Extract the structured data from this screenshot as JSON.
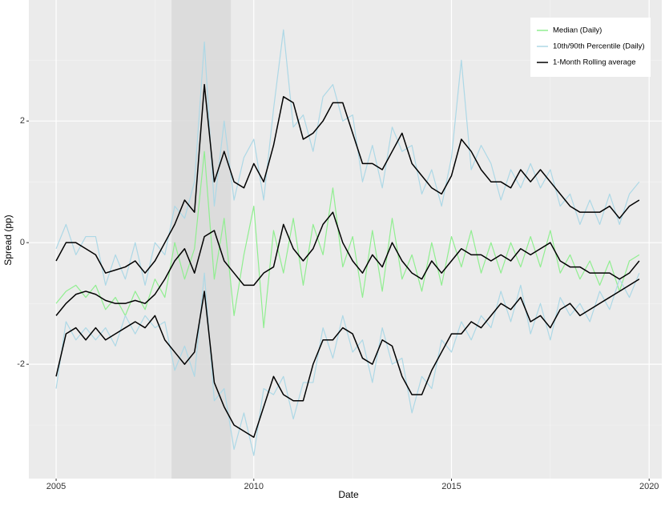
{
  "chart_data": {
    "type": "line",
    "x_label": "Date",
    "y_label": "Spread (pp)",
    "x": [
      2005,
      2005.25,
      2005.5,
      2005.75,
      2006,
      2006.25,
      2006.5,
      2006.75,
      2007,
      2007.25,
      2007.5,
      2007.75,
      2008,
      2008.25,
      2008.5,
      2008.75,
      2009,
      2009.25,
      2009.5,
      2009.75,
      2010,
      2010.25,
      2010.5,
      2010.75,
      2011,
      2011.25,
      2011.5,
      2011.75,
      2012,
      2012.25,
      2012.5,
      2012.75,
      2013,
      2013.25,
      2013.5,
      2013.75,
      2014,
      2014.25,
      2014.5,
      2014.75,
      2015,
      2015.25,
      2015.5,
      2015.75,
      2016,
      2016.25,
      2016.5,
      2016.75,
      2017,
      2017.25,
      2017.5,
      2017.75,
      2018,
      2018.25,
      2018.5,
      2018.75,
      2019,
      2019.25,
      2019.5,
      2019.75
    ],
    "series": [
      {
        "name": "Median (Daily)",
        "color": "#90ee90",
        "values": [
          -1.0,
          -0.8,
          -0.7,
          -0.9,
          -0.7,
          -1.1,
          -0.9,
          -1.2,
          -0.8,
          -1.1,
          -0.6,
          -0.9,
          0.0,
          -0.6,
          -0.1,
          1.5,
          -0.6,
          0.4,
          -1.2,
          -0.2,
          0.6,
          -1.4,
          0.2,
          -0.5,
          0.4,
          -0.7,
          0.3,
          -0.2,
          0.9,
          -0.4,
          0.1,
          -0.9,
          0.2,
          -0.8,
          0.4,
          -0.6,
          -0.2,
          -0.8,
          0.0,
          -0.7,
          0.1,
          -0.4,
          0.2,
          -0.5,
          0.0,
          -0.5,
          0.0,
          -0.4,
          0.1,
          -0.4,
          0.2,
          -0.5,
          -0.2,
          -0.6,
          -0.3,
          -0.7,
          -0.3,
          -0.8,
          -0.3,
          -0.2
        ]
      },
      {
        "name": "10th/90th Percentile (Daily)",
        "color": "#add8e6",
        "values": [
          -0.1,
          0.3,
          -0.2,
          0.1,
          0.1,
          -0.7,
          -0.2,
          -0.6,
          0.0,
          -0.7,
          0.0,
          -0.2,
          0.6,
          0.4,
          1.0,
          3.3,
          0.6,
          2.0,
          0.7,
          1.4,
          1.7,
          0.7,
          2.2,
          3.5,
          1.9,
          2.1,
          1.5,
          2.4,
          2.6,
          2.0,
          2.1,
          1.0,
          1.6,
          0.9,
          1.9,
          1.5,
          1.6,
          0.8,
          1.2,
          0.6,
          1.4,
          3.0,
          1.2,
          1.6,
          1.3,
          0.7,
          1.2,
          0.9,
          1.3,
          0.9,
          1.2,
          0.6,
          0.8,
          0.3,
          0.7,
          0.3,
          0.8,
          0.3,
          0.8,
          1.0
        ]
      },
      {
        "name": "10th/90th Percentile (Daily)",
        "color": "#add8e6",
        "values": [
          -2.4,
          -1.3,
          -1.6,
          -1.4,
          -1.6,
          -1.4,
          -1.7,
          -1.2,
          -1.5,
          -1.2,
          -1.4,
          -1.3,
          -2.1,
          -1.7,
          -2.2,
          -0.5,
          -2.6,
          -2.4,
          -3.4,
          -2.8,
          -3.5,
          -2.4,
          -2.5,
          -2.2,
          -2.9,
          -2.3,
          -2.3,
          -1.4,
          -1.9,
          -1.2,
          -1.8,
          -1.6,
          -2.3,
          -1.4,
          -2.0,
          -1.9,
          -2.8,
          -2.2,
          -2.4,
          -1.6,
          -1.8,
          -1.3,
          -1.6,
          -1.2,
          -1.4,
          -0.8,
          -1.3,
          -0.7,
          -1.5,
          -1.0,
          -1.6,
          -0.9,
          -1.2,
          -1.0,
          -1.3,
          -0.8,
          -1.1,
          -0.6,
          -0.9,
          -0.5
        ]
      },
      {
        "name": "1-Month Rolling average",
        "color": "#000000",
        "values": [
          -1.2,
          -1.0,
          -0.85,
          -0.8,
          -0.85,
          -0.95,
          -1.0,
          -1.0,
          -0.95,
          -1.0,
          -0.85,
          -0.6,
          -0.3,
          -0.1,
          -0.5,
          0.1,
          0.2,
          -0.3,
          -0.5,
          -0.7,
          -0.7,
          -0.5,
          -0.4,
          0.3,
          -0.1,
          -0.3,
          -0.1,
          0.3,
          0.5,
          0.0,
          -0.3,
          -0.5,
          -0.2,
          -0.4,
          0.0,
          -0.3,
          -0.5,
          -0.6,
          -0.3,
          -0.5,
          -0.3,
          -0.1,
          -0.2,
          -0.2,
          -0.3,
          -0.2,
          -0.3,
          -0.1,
          -0.2,
          -0.1,
          0.0,
          -0.3,
          -0.4,
          -0.4,
          -0.5,
          -0.5,
          -0.5,
          -0.6,
          -0.5,
          -0.3
        ]
      },
      {
        "name": "1-Month Rolling average",
        "color": "#000000",
        "values": [
          -0.3,
          0.0,
          0.0,
          -0.1,
          -0.2,
          -0.5,
          -0.45,
          -0.4,
          -0.3,
          -0.5,
          -0.3,
          0.0,
          0.3,
          0.7,
          0.5,
          2.6,
          1.0,
          1.5,
          1.0,
          0.9,
          1.3,
          1.0,
          1.6,
          2.4,
          2.3,
          1.7,
          1.8,
          2.0,
          2.3,
          2.3,
          1.8,
          1.3,
          1.3,
          1.2,
          1.5,
          1.8,
          1.3,
          1.1,
          0.9,
          0.8,
          1.1,
          1.7,
          1.5,
          1.2,
          1.0,
          1.0,
          0.9,
          1.2,
          1.0,
          1.2,
          1.0,
          0.8,
          0.6,
          0.5,
          0.5,
          0.5,
          0.6,
          0.4,
          0.6,
          0.7
        ]
      },
      {
        "name": "1-Month Rolling average",
        "color": "#000000",
        "values": [
          -2.2,
          -1.5,
          -1.4,
          -1.6,
          -1.4,
          -1.6,
          -1.5,
          -1.4,
          -1.3,
          -1.4,
          -1.2,
          -1.6,
          -1.8,
          -2.0,
          -1.8,
          -0.8,
          -2.3,
          -2.7,
          -3.0,
          -3.1,
          -3.2,
          -2.7,
          -2.2,
          -2.5,
          -2.6,
          -2.6,
          -2.0,
          -1.6,
          -1.6,
          -1.4,
          -1.5,
          -1.9,
          -2.0,
          -1.6,
          -1.7,
          -2.2,
          -2.5,
          -2.5,
          -2.1,
          -1.8,
          -1.5,
          -1.5,
          -1.3,
          -1.4,
          -1.2,
          -1.0,
          -1.1,
          -0.9,
          -1.3,
          -1.2,
          -1.4,
          -1.1,
          -1.0,
          -1.2,
          -1.1,
          -1.0,
          -0.9,
          -0.8,
          -0.7,
          -0.6
        ]
      }
    ],
    "shaded_period": [
      2007.92,
      2009.42
    ],
    "shade_color": "#d9d9d9",
    "xlim": [
      2004.31,
      2020.32
    ],
    "xticks": [
      2005,
      2010,
      2015,
      2020
    ],
    "ylim": [
      -3.88,
      3.99
    ],
    "yticks": [
      -2,
      0,
      2
    ],
    "grid": true,
    "legend": "top-right"
  }
}
